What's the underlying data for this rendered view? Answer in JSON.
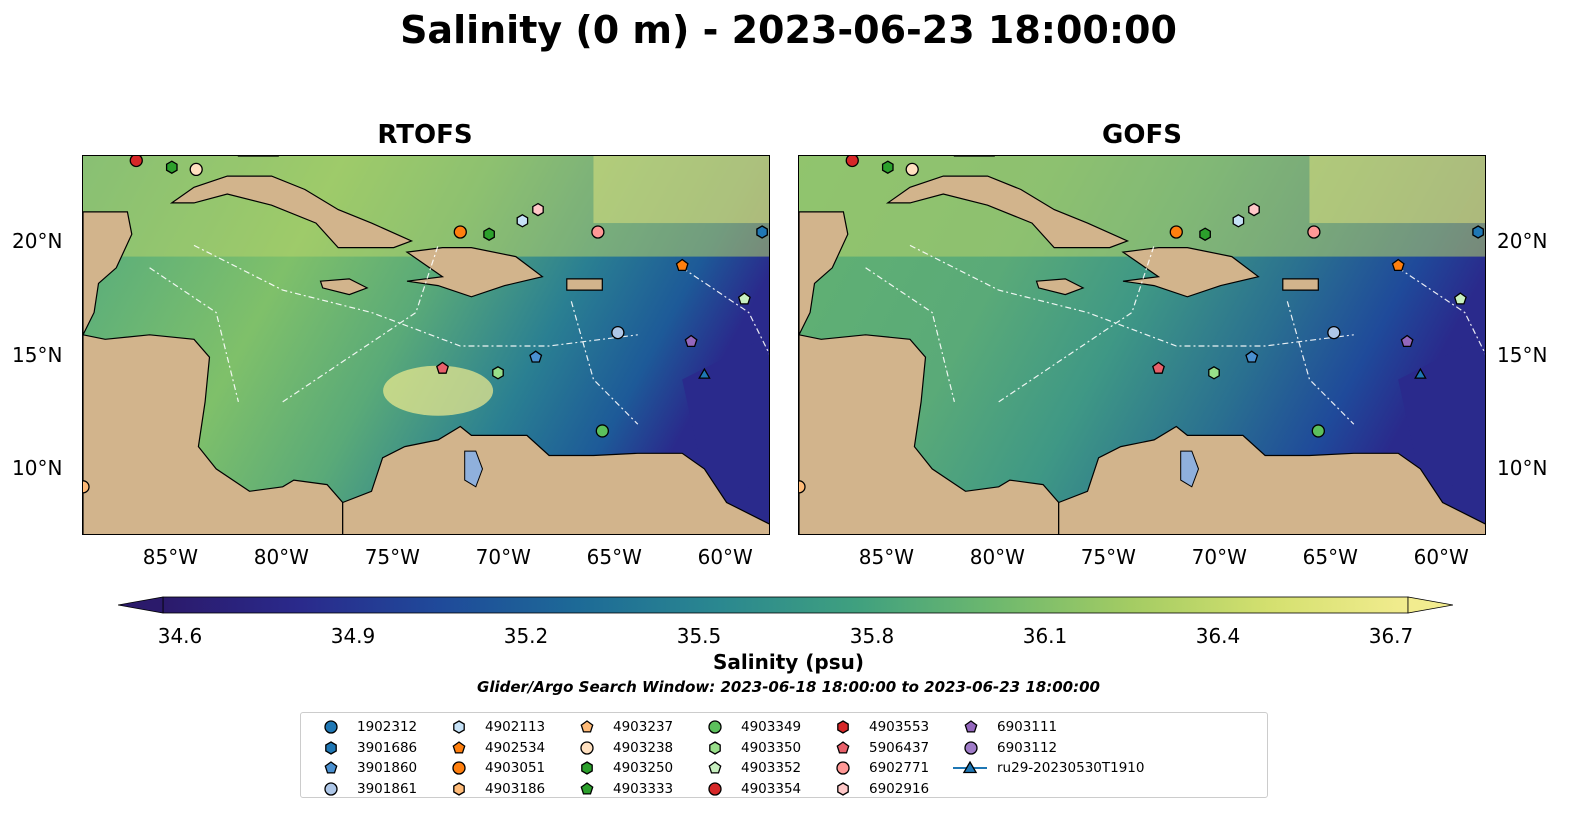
{
  "title": "Salinity (0 m) - 2023-06-23 18:00:00",
  "panels": [
    {
      "title": "RTOFS"
    },
    {
      "title": "GOFS"
    }
  ],
  "lon_ticks": [
    "85°W",
    "80°W",
    "75°W",
    "70°W",
    "65°W",
    "60°W"
  ],
  "lat_ticks": [
    "20°N",
    "15°N",
    "10°N"
  ],
  "colorbar": {
    "label": "Salinity (psu)",
    "ticks": [
      "34.6",
      "34.9",
      "35.2",
      "35.5",
      "35.8",
      "36.1",
      "36.4",
      "36.7"
    ],
    "min": 34.6,
    "max": 36.7,
    "colors": [
      "#2b1a6b",
      "#2a2a8c",
      "#1f4a9a",
      "#1d6a97",
      "#2a8790",
      "#3fa07f",
      "#6db86e",
      "#a4cc63",
      "#d4e06f",
      "#f2ec8f"
    ]
  },
  "search_window": "Glider/Argo Search Window: 2023-06-18 18:00:00 to 2023-06-23 18:00:00",
  "legend": [
    {
      "label": "1902312",
      "marker": "circle",
      "color": "#1f77b4"
    },
    {
      "label": "3901686",
      "marker": "hexagon",
      "color": "#1f77b4"
    },
    {
      "label": "3901860",
      "marker": "pentagon",
      "color": "#4a90d0"
    },
    {
      "label": "3901861",
      "marker": "circle",
      "color": "#aec7e8"
    },
    {
      "label": "4902113",
      "marker": "hexagon",
      "color": "#c6e2f7"
    },
    {
      "label": "4902534",
      "marker": "pentagon",
      "color": "#ff7f0e"
    },
    {
      "label": "4903051",
      "marker": "circle",
      "color": "#ff7f0e"
    },
    {
      "label": "4903186",
      "marker": "hexagon",
      "color": "#ffbb78"
    },
    {
      "label": "4903237",
      "marker": "pentagon",
      "color": "#ffbb78"
    },
    {
      "label": "4903238",
      "marker": "circle",
      "color": "#ffe0c0"
    },
    {
      "label": "4903250",
      "marker": "hexagon",
      "color": "#2ca02c"
    },
    {
      "label": "4903333",
      "marker": "pentagon",
      "color": "#2ca02c"
    },
    {
      "label": "4903349",
      "marker": "circle",
      "color": "#5cc05c"
    },
    {
      "label": "4903350",
      "marker": "hexagon",
      "color": "#98df8a"
    },
    {
      "label": "4903352",
      "marker": "pentagon",
      "color": "#c8f0c0"
    },
    {
      "label": "4903354",
      "marker": "circle",
      "color": "#d62728"
    },
    {
      "label": "4903553",
      "marker": "hexagon",
      "color": "#d62728"
    },
    {
      "label": "5906437",
      "marker": "pentagon",
      "color": "#e8606a"
    },
    {
      "label": "6902771",
      "marker": "circle",
      "color": "#ff9896"
    },
    {
      "label": "6902916",
      "marker": "hexagon",
      "color": "#ffc8c8"
    },
    {
      "label": "6903111",
      "marker": "pentagon",
      "color": "#9467bd"
    },
    {
      "label": "6903112",
      "marker": "circle",
      "color": "#a07cc8"
    },
    {
      "label": "ru29-20230530T1910",
      "marker": "triangle-line",
      "color": "#1f77b4"
    }
  ],
  "markers": [
    {
      "lon": -86.6,
      "lat": 23.8,
      "marker": "circle",
      "color": "#d62728"
    },
    {
      "lon": -85.0,
      "lat": 23.5,
      "marker": "hexagon",
      "color": "#2ca02c"
    },
    {
      "lon": -83.9,
      "lat": 23.4,
      "marker": "circle",
      "color": "#ffe0c0"
    },
    {
      "lon": -72.0,
      "lat": 20.6,
      "marker": "circle",
      "color": "#ff7f0e"
    },
    {
      "lon": -70.7,
      "lat": 20.5,
      "marker": "hexagon",
      "color": "#2ca02c"
    },
    {
      "lon": -69.2,
      "lat": 21.1,
      "marker": "hexagon",
      "color": "#c6e2f7"
    },
    {
      "lon": -68.5,
      "lat": 21.6,
      "marker": "hexagon",
      "color": "#ffc8c8"
    },
    {
      "lon": -65.8,
      "lat": 20.6,
      "marker": "circle",
      "color": "#ff9896"
    },
    {
      "lon": -62.0,
      "lat": 19.1,
      "marker": "pentagon",
      "color": "#ff7f0e"
    },
    {
      "lon": -58.4,
      "lat": 20.6,
      "marker": "hexagon",
      "color": "#1f77b4"
    },
    {
      "lon": -59.2,
      "lat": 17.6,
      "marker": "pentagon",
      "color": "#c8f0c0"
    },
    {
      "lon": -64.9,
      "lat": 16.1,
      "marker": "circle",
      "color": "#aec7e8"
    },
    {
      "lon": -61.6,
      "lat": 15.7,
      "marker": "pentagon",
      "color": "#9467bd"
    },
    {
      "lon": -68.6,
      "lat": 15.0,
      "marker": "pentagon",
      "color": "#4a90d0"
    },
    {
      "lon": -72.8,
      "lat": 14.5,
      "marker": "pentagon",
      "color": "#e8606a"
    },
    {
      "lon": -70.3,
      "lat": 14.3,
      "marker": "hexagon",
      "color": "#98df8a"
    },
    {
      "lon": -61.0,
      "lat": 14.2,
      "marker": "triangle",
      "color": "#1f77b4"
    },
    {
      "lon": -65.6,
      "lat": 11.7,
      "marker": "circle",
      "color": "#5cc05c"
    },
    {
      "lon": -89.0,
      "lat": 9.2,
      "marker": "circle",
      "color": "#ffbb78"
    }
  ]
}
